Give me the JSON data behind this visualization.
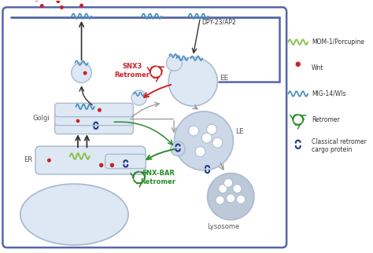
{
  "bg_color": "#ffffff",
  "cell_c": "#5566aa",
  "org_f": "#dde8f4",
  "org_e": "#aabbd0",
  "black": "#333333",
  "red": "#cc2222",
  "green": "#2a8a2a",
  "blue_text": "#4a8fc0",
  "dark_blue": "#1a3a8a",
  "gray": "#999999",
  "text_golgi": "Golgi",
  "text_er": "ER",
  "text_ee": "EE",
  "text_le": "LE",
  "text_lysosome": "Lysosome",
  "text_dpy": "DPY-23/AP2",
  "text_snx3": "SNX3\nRetromer",
  "text_snxbar": "SNX-BAR\nRetromer",
  "leg_labels": [
    "MOM-1/Porcupine",
    "Wnt",
    "MIG-14/Wls",
    "Retromer",
    "Classical retromer\ncargo protein"
  ],
  "leg_colors": [
    "#8bc34a",
    "#cc2222",
    "#4a8fc0",
    "#2a8a2a",
    "#1a3a8a"
  ],
  "figsize": [
    4.74,
    3.22
  ],
  "dpi": 100
}
